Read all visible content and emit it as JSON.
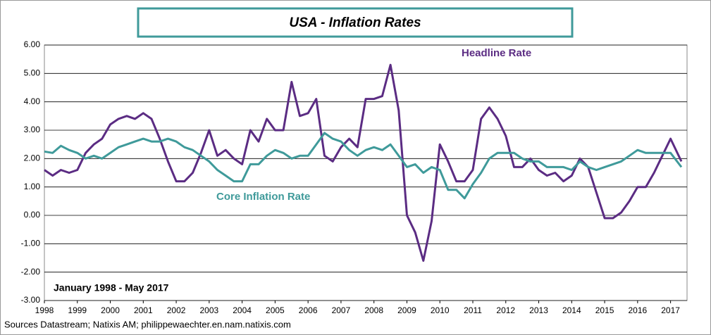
{
  "chart_data": {
    "type": "line",
    "title": "USA - Inflation Rates",
    "period_label": "January 1998 - May 2017",
    "source": "Sources Datastream; Natixis AM; philippewaechter.en.nam.natixis.com",
    "x": [
      1998,
      1998.25,
      1998.5,
      1998.75,
      1999,
      1999.25,
      1999.5,
      1999.75,
      2000,
      2000.25,
      2000.5,
      2000.75,
      2001,
      2001.25,
      2001.5,
      2001.75,
      2002,
      2002.25,
      2002.5,
      2002.75,
      2003,
      2003.25,
      2003.5,
      2003.75,
      2004,
      2004.25,
      2004.5,
      2004.75,
      2005,
      2005.25,
      2005.5,
      2005.75,
      2006,
      2006.25,
      2006.5,
      2006.75,
      2007,
      2007.25,
      2007.5,
      2007.75,
      2008,
      2008.25,
      2008.5,
      2008.75,
      2009,
      2009.25,
      2009.5,
      2009.75,
      2010,
      2010.25,
      2010.5,
      2010.75,
      2011,
      2011.25,
      2011.5,
      2011.75,
      2012,
      2012.25,
      2012.5,
      2012.75,
      2013,
      2013.25,
      2013.5,
      2013.75,
      2014,
      2014.25,
      2014.5,
      2014.75,
      2015,
      2015.25,
      2015.5,
      2015.75,
      2016,
      2016.25,
      2016.5,
      2016.75,
      2017,
      2017.33
    ],
    "series": [
      {
        "name": "Headline Rate",
        "color": "#5b2c83",
        "values": [
          1.6,
          1.4,
          1.6,
          1.5,
          1.6,
          2.2,
          2.5,
          2.7,
          3.2,
          3.4,
          3.5,
          3.4,
          3.6,
          3.4,
          2.7,
          1.9,
          1.2,
          1.2,
          1.5,
          2.2,
          3.0,
          2.1,
          2.3,
          2.0,
          1.8,
          3.0,
          2.6,
          3.4,
          3.0,
          3.0,
          4.7,
          3.5,
          3.6,
          4.1,
          2.1,
          1.9,
          2.4,
          2.7,
          2.4,
          4.1,
          4.1,
          4.2,
          5.3,
          3.7,
          0.0,
          -0.6,
          -1.6,
          -0.2,
          2.5,
          1.9,
          1.2,
          1.2,
          1.6,
          3.4,
          3.8,
          3.4,
          2.8,
          1.7,
          1.7,
          2.0,
          1.6,
          1.4,
          1.5,
          1.2,
          1.4,
          2.0,
          1.7,
          0.8,
          -0.1,
          -0.1,
          0.1,
          0.5,
          1.0,
          1.0,
          1.5,
          2.1,
          2.7,
          1.9
        ]
      },
      {
        "name": "Core Inflation Rate",
        "color": "#3f9a9a",
        "values": [
          2.25,
          2.2,
          2.45,
          2.3,
          2.2,
          2.0,
          2.1,
          2.0,
          2.2,
          2.4,
          2.5,
          2.6,
          2.7,
          2.6,
          2.6,
          2.7,
          2.6,
          2.4,
          2.3,
          2.1,
          1.9,
          1.6,
          1.4,
          1.2,
          1.2,
          1.8,
          1.8,
          2.1,
          2.3,
          2.2,
          2.0,
          2.1,
          2.1,
          2.5,
          2.9,
          2.7,
          2.6,
          2.3,
          2.1,
          2.3,
          2.4,
          2.3,
          2.5,
          2.1,
          1.7,
          1.8,
          1.5,
          1.7,
          1.6,
          0.9,
          0.9,
          0.6,
          1.1,
          1.5,
          2.0,
          2.2,
          2.2,
          2.2,
          2.0,
          1.9,
          1.9,
          1.7,
          1.7,
          1.7,
          1.6,
          1.9,
          1.7,
          1.6,
          1.7,
          1.8,
          1.9,
          2.1,
          2.3,
          2.2,
          2.2,
          2.2,
          2.2,
          1.7
        ]
      }
    ],
    "xlim": [
      1998,
      2017.5
    ],
    "xticks": [
      1998,
      1999,
      2000,
      2001,
      2002,
      2003,
      2004,
      2005,
      2006,
      2007,
      2008,
      2009,
      2010,
      2011,
      2012,
      2013,
      2014,
      2015,
      2016,
      2017
    ],
    "ylim": [
      -3,
      6
    ],
    "yticks": [
      {
        "value": 6,
        "label": "6.00"
      },
      {
        "value": 5,
        "label": "5.00"
      },
      {
        "value": 4,
        "label": "4.00"
      },
      {
        "value": 3,
        "label": "3.00"
      },
      {
        "value": 2,
        "label": "2.00"
      },
      {
        "value": 1,
        "label": "1.00"
      },
      {
        "value": 0,
        "label": "0.00"
      },
      {
        "value": -1,
        "label": "-1.00"
      },
      {
        "value": -2,
        "label": "-2.00"
      },
      {
        "value": -3,
        "label": "-3.00"
      }
    ],
    "grid": true
  }
}
